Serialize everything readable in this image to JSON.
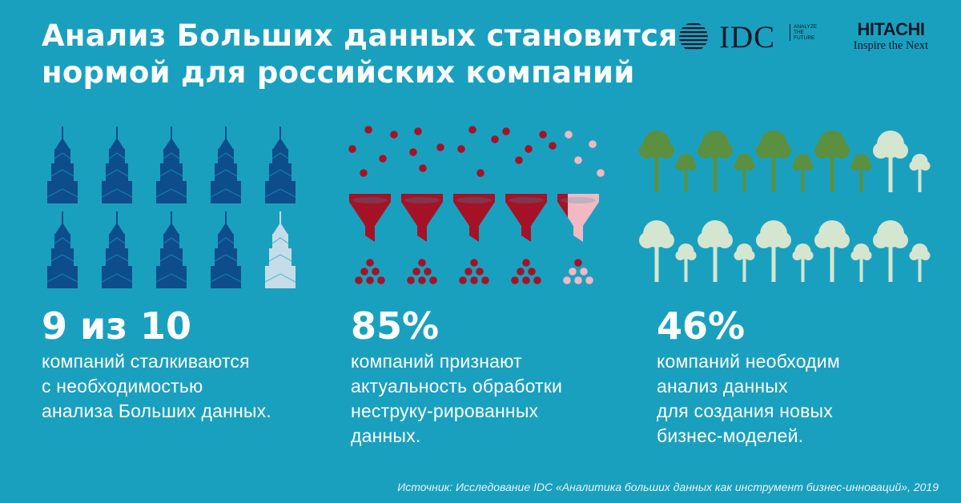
{
  "header": {
    "title_line1": "Анализ Больших данных становится",
    "title_line2": "нормой для российских компаний"
  },
  "logos": {
    "idc": {
      "wordmark": "IDC",
      "tagline": [
        "ANALYZE",
        "THE",
        "FUTURE"
      ],
      "icon": "globe-lines-icon"
    },
    "hitachi": {
      "wordmark": "HITACHI",
      "tagline": "Inspire the Next"
    }
  },
  "stats": [
    {
      "value": "9 из 10",
      "description": [
        "компаний сталкиваются",
        "с необходимостью",
        "анализа Больших данных."
      ],
      "icon": "skyscraper-icon",
      "filled": 9,
      "total": 10
    },
    {
      "value": "85%",
      "description": [
        "компаний признают",
        "актуальность обработки",
        "неструку-рированных",
        "данных."
      ],
      "icon": "funnel-icon",
      "filled_fraction": 0.85,
      "total": 5
    },
    {
      "value": "46%",
      "description": [
        "компаний необходим",
        "анализ данных",
        "для создания новых",
        "бизнес-моделей."
      ],
      "icon": "tree-icon",
      "filled_fraction": 0.46,
      "total": 20
    }
  ],
  "colors": {
    "background": "#1aa0bf",
    "building_fill": "#0e4d8c",
    "building_empty": "#c5dde8",
    "funnel_fill": "#a51226",
    "funnel_empty": "#f2b9c2",
    "tree_fill": "#5a9040",
    "tree_empty": "#d4e6d0"
  },
  "footer": {
    "source": "Источник: Исследование IDC «Аналитика больших данных как инструмент бизнес-инноваций», 2019"
  }
}
